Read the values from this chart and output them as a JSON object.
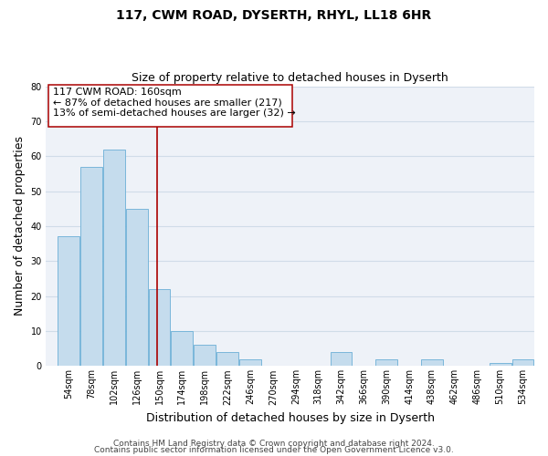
{
  "title": "117, CWM ROAD, DYSERTH, RHYL, LL18 6HR",
  "subtitle": "Size of property relative to detached houses in Dyserth",
  "xlabel": "Distribution of detached houses by size in Dyserth",
  "ylabel": "Number of detached properties",
  "bin_labels": [
    "54sqm",
    "78sqm",
    "102sqm",
    "126sqm",
    "150sqm",
    "174sqm",
    "198sqm",
    "222sqm",
    "246sqm",
    "270sqm",
    "294sqm",
    "318sqm",
    "342sqm",
    "366sqm",
    "390sqm",
    "414sqm",
    "438sqm",
    "462sqm",
    "486sqm",
    "510sqm",
    "534sqm"
  ],
  "bin_left_edges": [
    54,
    78,
    102,
    126,
    150,
    174,
    198,
    222,
    246,
    270,
    294,
    318,
    342,
    366,
    390,
    414,
    438,
    462,
    486,
    510,
    534
  ],
  "bin_width": 24,
  "counts": [
    37,
    57,
    62,
    45,
    22,
    10,
    6,
    4,
    2,
    0,
    0,
    0,
    4,
    0,
    2,
    0,
    2,
    0,
    0,
    1,
    2
  ],
  "bar_color": "#c5dced",
  "bar_edge_color": "#6aafd6",
  "grid_color": "#d0dce8",
  "background_color": "#eef2f8",
  "vline_x": 160,
  "vline_color": "#aa0000",
  "annotation_line1": "117 CWM ROAD: 160sqm",
  "annotation_line2": "← 87% of detached houses are smaller (217)",
  "annotation_line3": "13% of semi-detached houses are larger (32) →",
  "ylim": [
    0,
    80
  ],
  "yticks": [
    0,
    10,
    20,
    30,
    40,
    50,
    60,
    70,
    80
  ],
  "xlim_left": 42,
  "xlim_right": 558,
  "title_fontsize": 10,
  "subtitle_fontsize": 9,
  "axis_label_fontsize": 9,
  "tick_fontsize": 7,
  "annotation_fontsize": 8,
  "footer_fontsize": 6.5,
  "footer_line1": "Contains HM Land Registry data © Crown copyright and database right 2024.",
  "footer_line2": "Contains public sector information licensed under the Open Government Licence v3.0."
}
